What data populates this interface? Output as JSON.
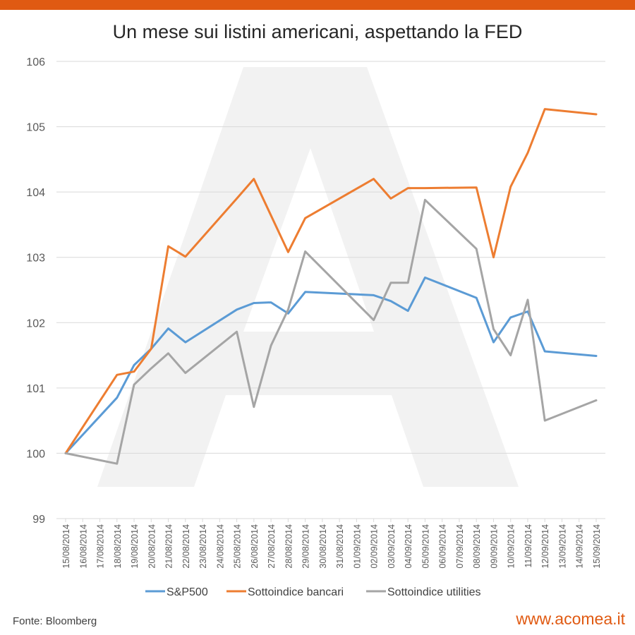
{
  "colors": {
    "accent": "#e05a12",
    "sp500": "#5b9bd5",
    "bancari": "#ed7d31",
    "utilities": "#a5a5a5",
    "grid": "#d9d9d9"
  },
  "footer": {
    "source": "Fonte: Bloomberg",
    "site": "www.acomea.it"
  },
  "chart_data": {
    "type": "line",
    "title": "Un mese sui listini americani, aspettando la FED",
    "xlabel": "",
    "ylabel": "",
    "ylim": [
      99,
      106
    ],
    "yticks": [
      99,
      100,
      101,
      102,
      103,
      104,
      105,
      106
    ],
    "grid": true,
    "legend_position": "bottom",
    "x": [
      "15/08/2014",
      "16/08/2014",
      "17/08/2014",
      "18/08/2014",
      "19/08/2014",
      "20/08/2014",
      "21/08/2014",
      "22/08/2014",
      "23/08/2014",
      "24/08/2014",
      "25/08/2014",
      "26/08/2014",
      "27/08/2014",
      "28/08/2014",
      "29/08/2014",
      "30/08/2014",
      "31/08/2014",
      "01/09/2014",
      "02/09/2014",
      "03/09/2014",
      "04/09/2014",
      "05/09/2014",
      "06/09/2014",
      "07/09/2014",
      "08/09/2014",
      "09/09/2014",
      "10/09/2014",
      "11/09/2014",
      "12/09/2014",
      "13/09/2014",
      "14/09/2014",
      "15/09/2014"
    ],
    "series": [
      {
        "name": "S&P500",
        "color": "#5b9bd5",
        "points": [
          [
            0,
            100.0
          ],
          [
            3,
            100.85
          ],
          [
            4,
            101.35
          ],
          [
            5,
            101.6
          ],
          [
            6,
            101.91
          ],
          [
            7,
            101.7
          ],
          [
            10,
            102.2
          ],
          [
            11,
            102.3
          ],
          [
            12,
            102.31
          ],
          [
            13,
            102.14
          ],
          [
            14,
            102.47
          ],
          [
            18,
            102.42
          ],
          [
            19,
            102.33
          ],
          [
            20,
            102.18
          ],
          [
            21,
            102.69
          ],
          [
            24,
            102.38
          ],
          [
            25,
            101.7
          ],
          [
            26,
            102.08
          ],
          [
            27,
            102.17
          ],
          [
            28,
            101.56
          ],
          [
            31,
            101.49
          ]
        ]
      },
      {
        "name": "Sottoindice bancari",
        "color": "#ed7d31",
        "points": [
          [
            0,
            100.0
          ],
          [
            3,
            101.2
          ],
          [
            4,
            101.25
          ],
          [
            5,
            101.6
          ],
          [
            6,
            103.17
          ],
          [
            7,
            103.01
          ],
          [
            10,
            103.9
          ],
          [
            11,
            104.2
          ],
          [
            13,
            103.08
          ],
          [
            14,
            103.6
          ],
          [
            18,
            104.2
          ],
          [
            19,
            103.9
          ],
          [
            20,
            104.06
          ],
          [
            21,
            104.06
          ],
          [
            24,
            104.07
          ],
          [
            25,
            103.0
          ],
          [
            26,
            104.08
          ],
          [
            27,
            104.6
          ],
          [
            28,
            105.27
          ],
          [
            31,
            105.19
          ]
        ]
      },
      {
        "name": "Sottoindice utilities",
        "color": "#a5a5a5",
        "points": [
          [
            0,
            100.0
          ],
          [
            3,
            99.84
          ],
          [
            4,
            101.05
          ],
          [
            5,
            101.3
          ],
          [
            6,
            101.53
          ],
          [
            7,
            101.23
          ],
          [
            10,
            101.86
          ],
          [
            11,
            100.71
          ],
          [
            12,
            101.65
          ],
          [
            13,
            102.2
          ],
          [
            14,
            103.09
          ],
          [
            18,
            102.04
          ],
          [
            19,
            102.61
          ],
          [
            20,
            102.61
          ],
          [
            21,
            103.88
          ],
          [
            24,
            103.13
          ],
          [
            25,
            101.9
          ],
          [
            26,
            101.5
          ],
          [
            27,
            102.35
          ],
          [
            28,
            100.5
          ],
          [
            31,
            100.81
          ]
        ]
      }
    ]
  }
}
